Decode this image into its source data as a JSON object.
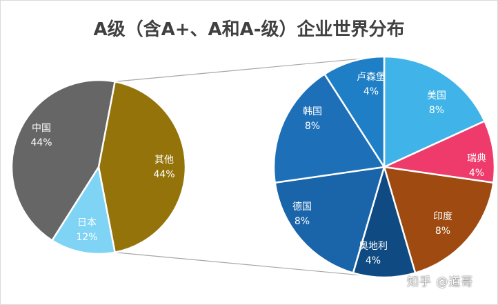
{
  "chart_data": {
    "type": "pie",
    "title": "A级（含A+、A和A-级）企业世界分布",
    "primary": {
      "slices": [
        {
          "label": "其他",
          "pct_label": "44%",
          "value": 44,
          "color": "#94740a"
        },
        {
          "label": "日本",
          "pct_label": "12%",
          "value": 12,
          "color": "#7fd4f5"
        },
        {
          "label": "中国",
          "pct_label": "44%",
          "value": 44,
          "color": "#666666"
        }
      ]
    },
    "breakdown": {
      "of": "其他",
      "slices": [
        {
          "label": "美国",
          "pct_label": "8%",
          "value": 8,
          "color": "#40b4e8"
        },
        {
          "label": "瑞典",
          "pct_label": "4%",
          "value": 4,
          "color": "#ee3b6b"
        },
        {
          "label": "印度",
          "pct_label": "8%",
          "value": 8,
          "color": "#9e4a10"
        },
        {
          "label": "奥地利",
          "pct_label": "4%",
          "value": 4,
          "color": "#0f4a82"
        },
        {
          "label": "德国",
          "pct_label": "8%",
          "value": 8,
          "color": "#1a64aa"
        },
        {
          "label": "韩国",
          "pct_label": "8%",
          "value": 8,
          "color": "#1d6fb8"
        },
        {
          "label": "卢森堡",
          "pct_label": "4%",
          "value": 4,
          "color": "#1e7fc6"
        }
      ]
    }
  },
  "watermark": "知乎 @道哥"
}
